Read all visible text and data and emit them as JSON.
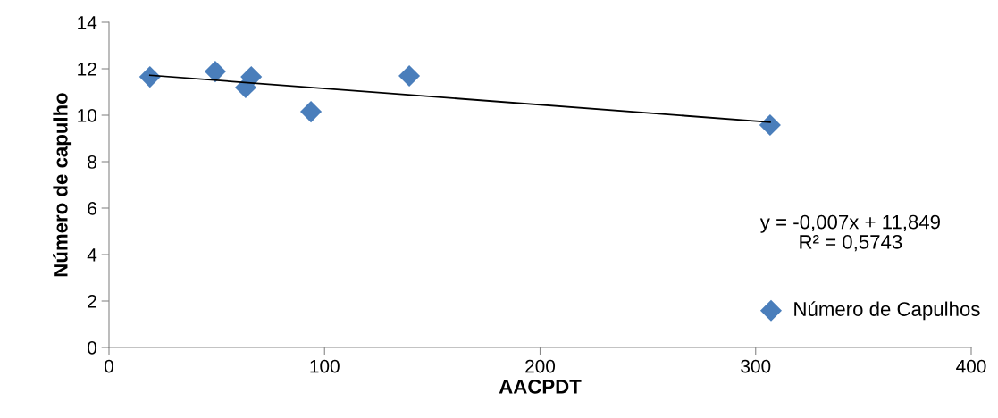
{
  "chart_data": {
    "type": "scatter",
    "xlabel": "AACPDT",
    "ylabel": "Número de capulho",
    "xlim": [
      0,
      400
    ],
    "xticks": [
      0,
      100,
      200,
      300,
      400
    ],
    "ylim": [
      0,
      14
    ],
    "yticks": [
      0,
      2,
      4,
      6,
      8,
      10,
      12,
      14
    ],
    "grid": false,
    "legend": "bottom right",
    "series": [
      {
        "name": "Número de Capulhos",
        "color": "#4a7ebb",
        "marker": "diamond",
        "x": [
          19,
          49.3,
          63.4,
          66,
          93.7,
          139.3,
          306.7
        ],
        "values": [
          11.65,
          11.88,
          11.19,
          11.65,
          10.15,
          11.69,
          9.58
        ]
      },
      {
        "type": "line",
        "color": "#000000",
        "x": [
          19,
          306.7
        ],
        "values": [
          11.72,
          9.7
        ],
        "marker": "none",
        "line_style": "solid"
      }
    ],
    "annotations": [
      "y = -0,007x + 11,849\nR² = 0,5743"
    ]
  }
}
